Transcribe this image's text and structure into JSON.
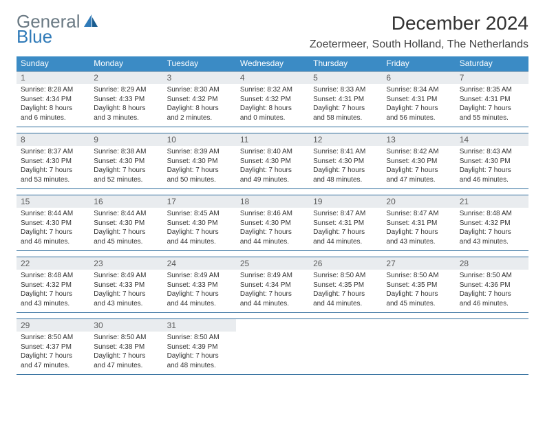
{
  "logo": {
    "text1": "General",
    "text2": "Blue"
  },
  "title": "December 2024",
  "location": "Zoetermeer, South Holland, The Netherlands",
  "colors": {
    "header_bg": "#3b8bc5",
    "header_text": "#ffffff",
    "rule": "#2b6a9a",
    "daynum_bg": "#e9ecef",
    "body_bg": "#ffffff",
    "logo_gray": "#6b7a84",
    "logo_blue": "#2f7ab8"
  },
  "weekdays": [
    "Sunday",
    "Monday",
    "Tuesday",
    "Wednesday",
    "Thursday",
    "Friday",
    "Saturday"
  ],
  "weeks": [
    [
      {
        "n": "1",
        "sr": "Sunrise: 8:28 AM",
        "ss": "Sunset: 4:34 PM",
        "dl": "Daylight: 8 hours and 6 minutes."
      },
      {
        "n": "2",
        "sr": "Sunrise: 8:29 AM",
        "ss": "Sunset: 4:33 PM",
        "dl": "Daylight: 8 hours and 3 minutes."
      },
      {
        "n": "3",
        "sr": "Sunrise: 8:30 AM",
        "ss": "Sunset: 4:32 PM",
        "dl": "Daylight: 8 hours and 2 minutes."
      },
      {
        "n": "4",
        "sr": "Sunrise: 8:32 AM",
        "ss": "Sunset: 4:32 PM",
        "dl": "Daylight: 8 hours and 0 minutes."
      },
      {
        "n": "5",
        "sr": "Sunrise: 8:33 AM",
        "ss": "Sunset: 4:31 PM",
        "dl": "Daylight: 7 hours and 58 minutes."
      },
      {
        "n": "6",
        "sr": "Sunrise: 8:34 AM",
        "ss": "Sunset: 4:31 PM",
        "dl": "Daylight: 7 hours and 56 minutes."
      },
      {
        "n": "7",
        "sr": "Sunrise: 8:35 AM",
        "ss": "Sunset: 4:31 PM",
        "dl": "Daylight: 7 hours and 55 minutes."
      }
    ],
    [
      {
        "n": "8",
        "sr": "Sunrise: 8:37 AM",
        "ss": "Sunset: 4:30 PM",
        "dl": "Daylight: 7 hours and 53 minutes."
      },
      {
        "n": "9",
        "sr": "Sunrise: 8:38 AM",
        "ss": "Sunset: 4:30 PM",
        "dl": "Daylight: 7 hours and 52 minutes."
      },
      {
        "n": "10",
        "sr": "Sunrise: 8:39 AM",
        "ss": "Sunset: 4:30 PM",
        "dl": "Daylight: 7 hours and 50 minutes."
      },
      {
        "n": "11",
        "sr": "Sunrise: 8:40 AM",
        "ss": "Sunset: 4:30 PM",
        "dl": "Daylight: 7 hours and 49 minutes."
      },
      {
        "n": "12",
        "sr": "Sunrise: 8:41 AM",
        "ss": "Sunset: 4:30 PM",
        "dl": "Daylight: 7 hours and 48 minutes."
      },
      {
        "n": "13",
        "sr": "Sunrise: 8:42 AM",
        "ss": "Sunset: 4:30 PM",
        "dl": "Daylight: 7 hours and 47 minutes."
      },
      {
        "n": "14",
        "sr": "Sunrise: 8:43 AM",
        "ss": "Sunset: 4:30 PM",
        "dl": "Daylight: 7 hours and 46 minutes."
      }
    ],
    [
      {
        "n": "15",
        "sr": "Sunrise: 8:44 AM",
        "ss": "Sunset: 4:30 PM",
        "dl": "Daylight: 7 hours and 46 minutes."
      },
      {
        "n": "16",
        "sr": "Sunrise: 8:44 AM",
        "ss": "Sunset: 4:30 PM",
        "dl": "Daylight: 7 hours and 45 minutes."
      },
      {
        "n": "17",
        "sr": "Sunrise: 8:45 AM",
        "ss": "Sunset: 4:30 PM",
        "dl": "Daylight: 7 hours and 44 minutes."
      },
      {
        "n": "18",
        "sr": "Sunrise: 8:46 AM",
        "ss": "Sunset: 4:30 PM",
        "dl": "Daylight: 7 hours and 44 minutes."
      },
      {
        "n": "19",
        "sr": "Sunrise: 8:47 AM",
        "ss": "Sunset: 4:31 PM",
        "dl": "Daylight: 7 hours and 44 minutes."
      },
      {
        "n": "20",
        "sr": "Sunrise: 8:47 AM",
        "ss": "Sunset: 4:31 PM",
        "dl": "Daylight: 7 hours and 43 minutes."
      },
      {
        "n": "21",
        "sr": "Sunrise: 8:48 AM",
        "ss": "Sunset: 4:32 PM",
        "dl": "Daylight: 7 hours and 43 minutes."
      }
    ],
    [
      {
        "n": "22",
        "sr": "Sunrise: 8:48 AM",
        "ss": "Sunset: 4:32 PM",
        "dl": "Daylight: 7 hours and 43 minutes."
      },
      {
        "n": "23",
        "sr": "Sunrise: 8:49 AM",
        "ss": "Sunset: 4:33 PM",
        "dl": "Daylight: 7 hours and 43 minutes."
      },
      {
        "n": "24",
        "sr": "Sunrise: 8:49 AM",
        "ss": "Sunset: 4:33 PM",
        "dl": "Daylight: 7 hours and 44 minutes."
      },
      {
        "n": "25",
        "sr": "Sunrise: 8:49 AM",
        "ss": "Sunset: 4:34 PM",
        "dl": "Daylight: 7 hours and 44 minutes."
      },
      {
        "n": "26",
        "sr": "Sunrise: 8:50 AM",
        "ss": "Sunset: 4:35 PM",
        "dl": "Daylight: 7 hours and 44 minutes."
      },
      {
        "n": "27",
        "sr": "Sunrise: 8:50 AM",
        "ss": "Sunset: 4:35 PM",
        "dl": "Daylight: 7 hours and 45 minutes."
      },
      {
        "n": "28",
        "sr": "Sunrise: 8:50 AM",
        "ss": "Sunset: 4:36 PM",
        "dl": "Daylight: 7 hours and 46 minutes."
      }
    ],
    [
      {
        "n": "29",
        "sr": "Sunrise: 8:50 AM",
        "ss": "Sunset: 4:37 PM",
        "dl": "Daylight: 7 hours and 47 minutes."
      },
      {
        "n": "30",
        "sr": "Sunrise: 8:50 AM",
        "ss": "Sunset: 4:38 PM",
        "dl": "Daylight: 7 hours and 47 minutes."
      },
      {
        "n": "31",
        "sr": "Sunrise: 8:50 AM",
        "ss": "Sunset: 4:39 PM",
        "dl": "Daylight: 7 hours and 48 minutes."
      },
      null,
      null,
      null,
      null
    ]
  ]
}
